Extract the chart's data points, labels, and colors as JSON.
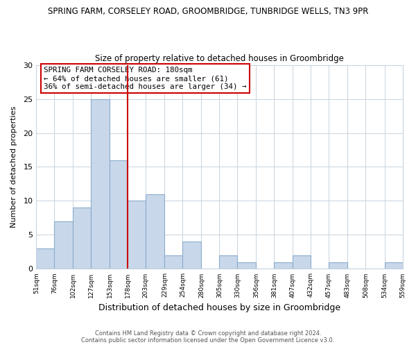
{
  "title": "SPRING FARM, CORSELEY ROAD, GROOMBRIDGE, TUNBRIDGE WELLS, TN3 9PR",
  "subtitle": "Size of property relative to detached houses in Groombridge",
  "xlabel": "Distribution of detached houses by size in Groombridge",
  "ylabel": "Number of detached properties",
  "bar_edges": [
    51,
    76,
    102,
    127,
    153,
    178,
    203,
    229,
    254,
    280,
    305,
    330,
    356,
    381,
    407,
    432,
    457,
    483,
    508,
    534,
    559
  ],
  "bar_heights": [
    3,
    7,
    9,
    25,
    16,
    10,
    11,
    2,
    4,
    0,
    2,
    1,
    0,
    1,
    2,
    0,
    1,
    0,
    0,
    1
  ],
  "bar_color": "#c8d8ea",
  "bar_edge_color": "#8aabcc",
  "ref_line_x": 178,
  "ref_line_color": "#cc0000",
  "ylim": [
    0,
    30
  ],
  "yticks": [
    0,
    5,
    10,
    15,
    20,
    25,
    30
  ],
  "annotation_title": "SPRING FARM CORSELEY ROAD: 180sqm",
  "annotation_line1": "← 64% of detached houses are smaller (61)",
  "annotation_line2": "36% of semi-detached houses are larger (34) →",
  "footer1": "Contains HM Land Registry data © Crown copyright and database right 2024.",
  "footer2": "Contains public sector information licensed under the Open Government Licence v3.0.",
  "background_color": "#ffffff",
  "plot_bg_color": "#ffffff",
  "grid_color": "#c8d4de"
}
